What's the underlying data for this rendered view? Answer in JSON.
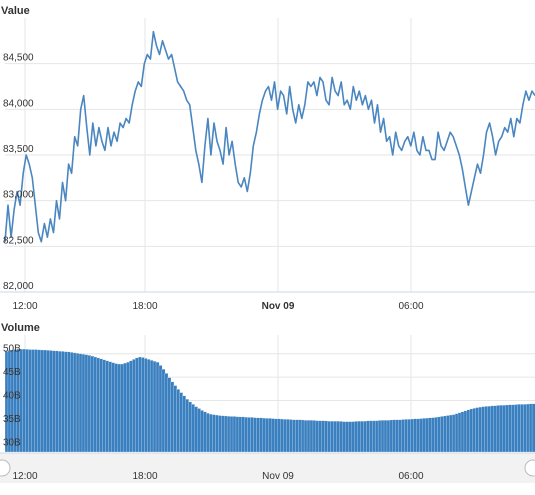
{
  "chart_data": [
    {
      "type": "line",
      "title": "Value",
      "xlabel": "",
      "ylabel": "",
      "ylim": [
        82000,
        85000
      ],
      "y_ticks": [
        "82,000",
        "82,500",
        "83,000",
        "83,500",
        "84,000",
        "84,500"
      ],
      "x_ticks": [
        "12:00",
        "18:00",
        "Nov 09",
        "06:00"
      ],
      "grid": "on",
      "series": [
        {
          "color": "#4a86c0",
          "values": [
            82550,
            82950,
            82600,
            82900,
            83100,
            82950,
            83300,
            83500,
            83400,
            83250,
            82950,
            82650,
            82550,
            82750,
            82600,
            82800,
            82650,
            83000,
            82800,
            83200,
            83000,
            83400,
            83300,
            83700,
            83600,
            84000,
            84150,
            83800,
            83500,
            83850,
            83600,
            83800,
            83650,
            83550,
            83800,
            83600,
            83750,
            83650,
            83850,
            83800,
            83900,
            83850,
            84050,
            84200,
            84300,
            84250,
            84500,
            84600,
            84550,
            84850,
            84700,
            84600,
            84750,
            84650,
            84550,
            84600,
            84450,
            84300,
            84250,
            84200,
            84100,
            84050,
            83800,
            83550,
            83400,
            83200,
            83600,
            83900,
            83500,
            83850,
            83650,
            83550,
            83400,
            83800,
            83500,
            83650,
            83400,
            83200,
            83150,
            83250,
            83100,
            83300,
            83600,
            83750,
            83950,
            84100,
            84200,
            84250,
            84100,
            84300,
            84000,
            84200,
            84150,
            83950,
            84250,
            84000,
            83850,
            84050,
            83900,
            84050,
            84300,
            84250,
            84300,
            84150,
            84350,
            84300,
            84100,
            84050,
            84350,
            84200,
            84150,
            84300,
            84050,
            84100,
            84000,
            84250,
            84100,
            84200,
            84050,
            84150,
            84000,
            84100,
            83850,
            84050,
            83750,
            83900,
            83650,
            83700,
            83500,
            83750,
            83600,
            83550,
            83650,
            83700,
            83600,
            83750,
            83550,
            83500,
            83700,
            83550,
            83550,
            83450,
            83450,
            83750,
            83600,
            83550,
            83650,
            83750,
            83700,
            83600,
            83500,
            83350,
            83150,
            82950,
            83100,
            83250,
            83400,
            83300,
            83500,
            83750,
            83850,
            83700,
            83500,
            83650,
            83700,
            83800,
            83750,
            83900,
            83700,
            83900,
            83850,
            84050,
            84200,
            84100,
            84200,
            84150
          ]
        }
      ]
    },
    {
      "type": "bar",
      "title": "Volume",
      "xlabel": "",
      "ylabel": "",
      "ylim": [
        29000000000,
        54000000000
      ],
      "y_ticks": [
        "30B",
        "35B",
        "40B",
        "45B",
        "50B"
      ],
      "x_ticks": [
        "12:00",
        "18:00",
        "Nov 09",
        "06:00"
      ],
      "grid": "on",
      "series": [
        {
          "color": "#3a7fbf",
          "values": [
            50500000000,
            50700000000,
            50800000000,
            50900000000,
            51000000000,
            51000000000,
            51000000000,
            50950000000,
            50900000000,
            50900000000,
            50900000000,
            50850000000,
            50800000000,
            50800000000,
            50750000000,
            50700000000,
            50650000000,
            50600000000,
            50550000000,
            50500000000,
            50450000000,
            50400000000,
            50300000000,
            50200000000,
            50100000000,
            50000000000,
            49900000000,
            49800000000,
            49650000000,
            49500000000,
            49300000000,
            49100000000,
            48900000000,
            48700000000,
            48500000000,
            48300000000,
            48100000000,
            47900000000,
            47800000000,
            47800000000,
            48000000000,
            48200000000,
            48500000000,
            48800000000,
            49100000000,
            49300000000,
            49200000000,
            49000000000,
            48800000000,
            48600000000,
            48400000000,
            48200000000,
            47500000000,
            46700000000,
            45800000000,
            44900000000,
            44000000000,
            43200000000,
            42400000000,
            41700000000,
            41000000000,
            40300000000,
            39700000000,
            39200000000,
            38700000000,
            38300000000,
            37900000000,
            37600000000,
            37300000000,
            37100000000,
            37000000000,
            36900000000,
            36800000000,
            36750000000,
            36700000000,
            36650000000,
            36600000000,
            36600000000,
            36550000000,
            36500000000,
            36500000000,
            36450000000,
            36400000000,
            36400000000,
            36350000000,
            36300000000,
            36300000000,
            36250000000,
            36200000000,
            36200000000,
            36150000000,
            36100000000,
            36100000000,
            36050000000,
            36000000000,
            36000000000,
            35950000000,
            35900000000,
            35900000000,
            35900000000,
            35850000000,
            35800000000,
            35800000000,
            35800000000,
            35750000000,
            35700000000,
            35700000000,
            35700000000,
            35650000000,
            35600000000,
            35600000000,
            35600000000,
            35600000000,
            35550000000,
            35500000000,
            35500000000,
            35500000000,
            35500000000,
            35550000000,
            35600000000,
            35600000000,
            35600000000,
            35650000000,
            35700000000,
            35700000000,
            35700000000,
            35750000000,
            35800000000,
            35800000000,
            35800000000,
            35850000000,
            35900000000,
            35900000000,
            35900000000,
            35950000000,
            36000000000,
            36000000000,
            36050000000,
            36100000000,
            36100000000,
            36150000000,
            36200000000,
            36250000000,
            36300000000,
            36350000000,
            36400000000,
            36500000000,
            36600000000,
            36700000000,
            36800000000,
            36900000000,
            37000000000,
            37200000000,
            37400000000,
            37600000000,
            37800000000,
            38000000000,
            38200000000,
            38350000000,
            38500000000,
            38600000000,
            38700000000,
            38750000000,
            38800000000,
            38850000000,
            38900000000,
            38950000000,
            39000000000,
            39000000000,
            39050000000,
            39100000000,
            39100000000,
            39150000000,
            39200000000,
            39200000000,
            39200000000,
            39250000000,
            39300000000,
            39300000000
          ]
        }
      ]
    }
  ]
}
